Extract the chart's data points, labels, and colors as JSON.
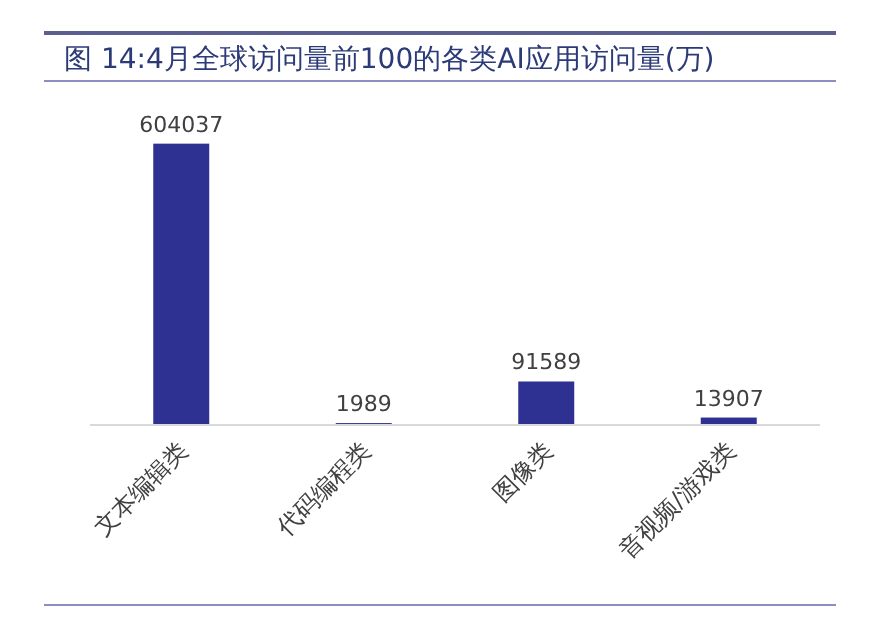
{
  "chart_data": {
    "type": "bar",
    "title": "图 14:4月全球访问量前100的各类AI应用访问量(万)",
    "categories": [
      "文本编辑类",
      "代码编程类",
      "图像类",
      "音视频/游戏类"
    ],
    "values": [
      604037,
      1989,
      91589,
      13907
    ],
    "color": "#2e3192",
    "data_labels": true
  }
}
